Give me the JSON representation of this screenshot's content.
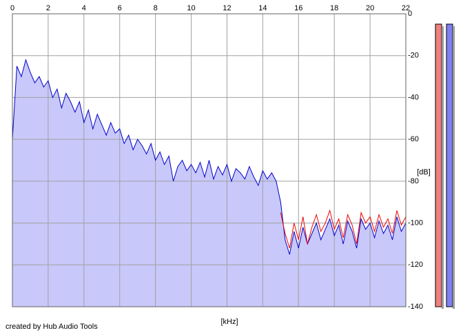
{
  "chart_data": {
    "type": "line",
    "x_label": "[kHz]",
    "y_label": "[dB]",
    "x_axis_position": "top",
    "y_axis_position": "right",
    "xlim": [
      0,
      22
    ],
    "ylim": [
      -140,
      0
    ],
    "xticks": [
      0,
      2,
      4,
      6,
      8,
      10,
      12,
      14,
      16,
      18,
      20,
      22
    ],
    "yticks": [
      0,
      -20,
      -40,
      -60,
      -80,
      -100,
      -120,
      -140
    ],
    "grid": true,
    "area_color": "#c8c8fa",
    "series": [
      {
        "color": "#0000cc",
        "fill": true,
        "x": [
          0,
          0.25,
          0.5,
          0.75,
          1,
          1.25,
          1.5,
          1.75,
          2,
          2.25,
          2.5,
          2.75,
          3,
          3.25,
          3.5,
          3.75,
          4,
          4.25,
          4.5,
          4.75,
          5,
          5.25,
          5.5,
          5.75,
          6,
          6.25,
          6.5,
          6.75,
          7,
          7.25,
          7.5,
          7.75,
          8,
          8.25,
          8.5,
          8.75,
          9,
          9.25,
          9.5,
          9.75,
          10,
          10.25,
          10.5,
          10.75,
          11,
          11.25,
          11.5,
          11.75,
          12,
          12.25,
          12.5,
          12.75,
          13,
          13.25,
          13.5,
          13.75,
          14,
          14.25,
          14.5,
          14.75,
          15,
          15.25,
          15.5,
          15.75,
          16,
          16.25,
          16.5,
          16.75,
          17,
          17.25,
          17.5,
          17.75,
          18,
          18.25,
          18.5,
          18.75,
          19,
          19.25,
          19.5,
          19.75,
          20,
          20.25,
          20.5,
          20.75,
          21,
          21.25,
          21.5,
          21.75,
          22
        ],
        "values": [
          -60,
          -25,
          -30,
          -22,
          -28,
          -33,
          -30,
          -35,
          -32,
          -40,
          -36,
          -45,
          -38,
          -42,
          -47,
          -42,
          -52,
          -46,
          -55,
          -48,
          -53,
          -58,
          -52,
          -57,
          -55,
          -62,
          -58,
          -65,
          -60,
          -63,
          -67,
          -62,
          -70,
          -66,
          -72,
          -68,
          -80,
          -73,
          -70,
          -75,
          -72,
          -76,
          -71,
          -78,
          -70,
          -79,
          -73,
          -77,
          -72,
          -80,
          -74,
          -76,
          -79,
          -73,
          -78,
          -82,
          -75,
          -79,
          -76,
          -80,
          -90,
          -108,
          -115,
          -104,
          -112,
          -102,
          -110,
          -105,
          -100,
          -108,
          -103,
          -98,
          -106,
          -101,
          -110,
          -99,
          -104,
          -112,
          -98,
          -103,
          -100,
          -107,
          -99,
          -105,
          -101,
          -108,
          -97,
          -104,
          -100
        ]
      },
      {
        "color": "#ee0000",
        "x": [
          15,
          15.25,
          15.5,
          15.75,
          16,
          16.25,
          16.5,
          16.75,
          17,
          17.25,
          17.5,
          17.75,
          18,
          18.25,
          18.5,
          18.75,
          19,
          19.25,
          19.5,
          19.75,
          20,
          20.25,
          20.5,
          20.75,
          21,
          21.25,
          21.5,
          21.75,
          22
        ],
        "values": [
          -95,
          -105,
          -112,
          -100,
          -108,
          -97,
          -110,
          -102,
          -96,
          -104,
          -100,
          -94,
          -103,
          -98,
          -107,
          -96,
          -101,
          -110,
          -95,
          -100,
          -97,
          -104,
          -96,
          -102,
          -98,
          -105,
          -94,
          -101,
          -97
        ]
      }
    ]
  },
  "footer": {
    "credit": "created by Hub Audio Tools"
  }
}
